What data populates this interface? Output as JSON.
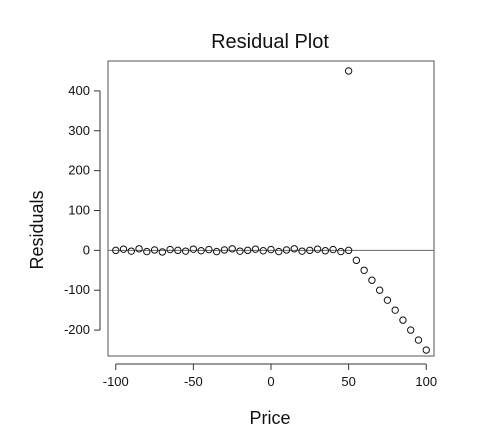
{
  "chart_data": {
    "type": "scatter",
    "title": "Residual Plot",
    "xlabel": "Price",
    "ylabel": "Residuals",
    "xlim": [
      -105,
      105
    ],
    "ylim": [
      -265,
      475
    ],
    "x_ticks": [
      -100,
      -50,
      0,
      50,
      100
    ],
    "y_ticks": [
      -200,
      -100,
      0,
      100,
      200,
      300,
      400
    ],
    "x_tick_labels": [
      "-100",
      "-50",
      "0",
      "50",
      "100"
    ],
    "y_tick_labels": [
      "-200",
      "-100",
      "0",
      "100",
      "200",
      "300",
      "400"
    ],
    "reference_line": {
      "y": 0
    },
    "grid": false,
    "marker": "open-circle",
    "series": [
      {
        "points": [
          [
            -100,
            0
          ],
          [
            -95,
            3
          ],
          [
            -90,
            -2
          ],
          [
            -85,
            4
          ],
          [
            -80,
            -3
          ],
          [
            -75,
            1
          ],
          [
            -70,
            -4
          ],
          [
            -65,
            2
          ],
          [
            -60,
            0
          ],
          [
            -55,
            -2
          ],
          [
            -50,
            3
          ],
          [
            -45,
            -1
          ],
          [
            -40,
            2
          ],
          [
            -35,
            -3
          ],
          [
            -30,
            1
          ],
          [
            -25,
            4
          ],
          [
            -20,
            -2
          ],
          [
            -15,
            0
          ],
          [
            -10,
            3
          ],
          [
            -5,
            -1
          ],
          [
            0,
            2
          ],
          [
            5,
            -3
          ],
          [
            10,
            1
          ],
          [
            15,
            4
          ],
          [
            20,
            -2
          ],
          [
            25,
            0
          ],
          [
            30,
            3
          ],
          [
            35,
            -1
          ],
          [
            40,
            2
          ],
          [
            45,
            -3
          ],
          [
            50,
            0
          ],
          [
            55,
            -25
          ],
          [
            60,
            -50
          ],
          [
            65,
            -75
          ],
          [
            70,
            -100
          ],
          [
            75,
            -125
          ],
          [
            80,
            -150
          ],
          [
            85,
            -175
          ],
          [
            90,
            -200
          ],
          [
            95,
            -225
          ],
          [
            100,
            -250
          ],
          [
            50,
            450
          ]
        ]
      }
    ]
  }
}
